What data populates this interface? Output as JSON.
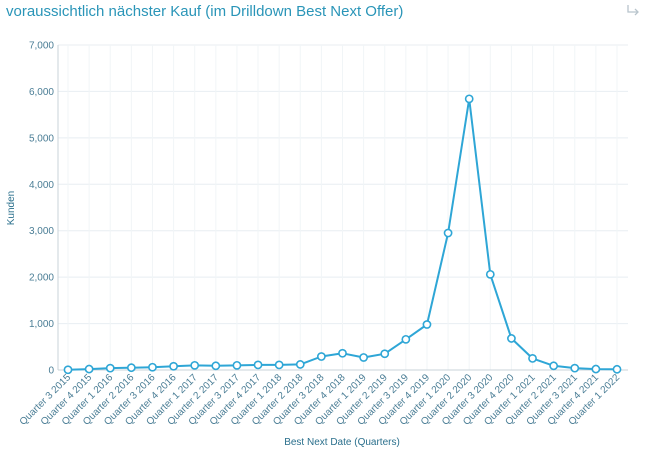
{
  "header": {
    "title": "voraussichtlich nächster Kauf (im Drilldown Best Next Offer)"
  },
  "chart_data": {
    "type": "line",
    "title": "voraussichtlich nächster Kauf (im Drilldown Best Next Offer)",
    "xlabel": "Best Next Date (Quarters)",
    "ylabel": "Kunden",
    "ylim": [
      0,
      7000
    ],
    "yticks": [
      0,
      1000,
      2000,
      3000,
      4000,
      5000,
      6000,
      7000
    ],
    "ytick_labels": [
      "0",
      "1,000",
      "2,000",
      "3,000",
      "4,000",
      "5,000",
      "6,000",
      "7,000"
    ],
    "grid": true,
    "legend": "none",
    "color": "#2ea6d6",
    "categories": [
      "Quarter 3 2015",
      "Quarter 4 2015",
      "Quarter 1 2016",
      "Quarter 2 2016",
      "Quarter 3 2016",
      "Quarter 4 2016",
      "Quarter 1 2017",
      "Quarter 2 2017",
      "Quarter 3 2017",
      "Quarter 4 2017",
      "Quarter 1 2018",
      "Quarter 2 2018",
      "Quarter 3 2018",
      "Quarter 4 2018",
      "Quarter 1 2019",
      "Quarter 2 2019",
      "Quarter 3 2019",
      "Quarter 4 2019",
      "Quarter 1 2020",
      "Quarter 2 2020",
      "Quarter 3 2020",
      "Quarter 4 2020",
      "Quarter 1 2021",
      "Quarter 2 2021",
      "Quarter 3 2021",
      "Quarter 4 2021",
      "Quarter 1 2022"
    ],
    "values": [
      5,
      20,
      40,
      50,
      60,
      80,
      100,
      90,
      100,
      110,
      110,
      120,
      290,
      360,
      270,
      350,
      660,
      980,
      2950,
      5840,
      2060,
      680,
      250,
      90,
      40,
      20,
      15
    ]
  }
}
